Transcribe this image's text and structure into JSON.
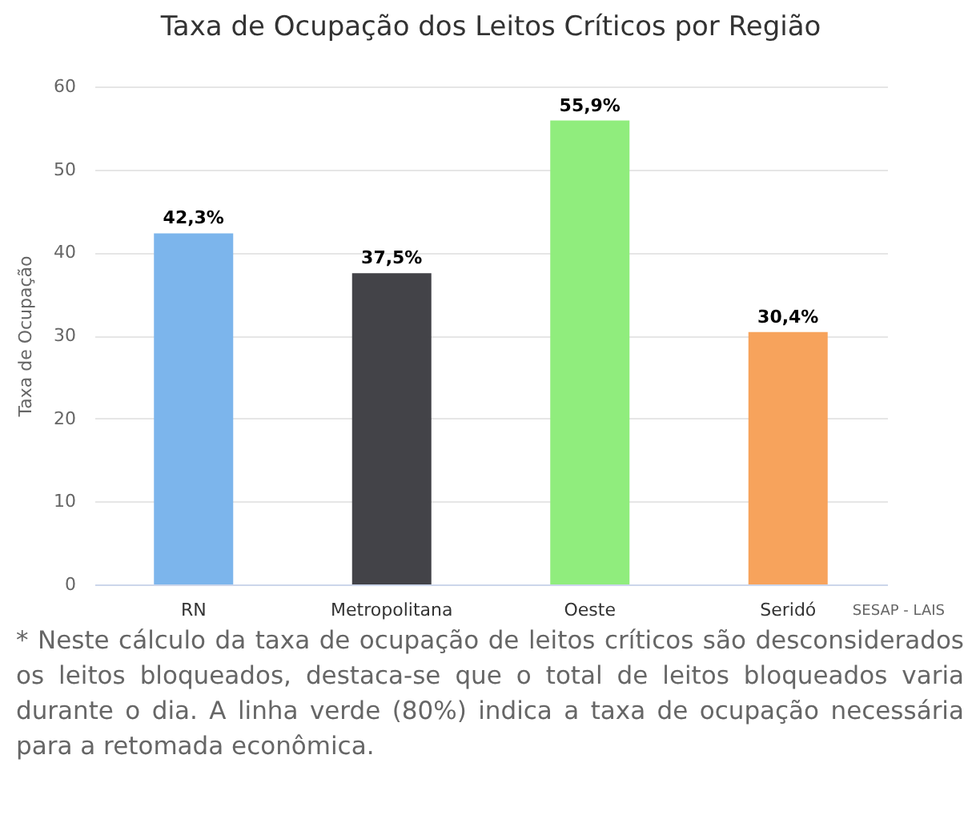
{
  "chart_data": {
    "type": "bar",
    "title": "Taxa de Ocupação dos Leitos Críticos por Região",
    "ylabel": "Taxa de Ocupação",
    "categories": [
      "RN",
      "Metropolitana",
      "Oeste",
      "Seridó"
    ],
    "values": [
      42.3,
      37.5,
      55.9,
      30.4
    ],
    "colors": [
      "#7cb5ec",
      "#434348",
      "#90ed7d",
      "#f7a35c"
    ],
    "value_labels": [
      "42,3%",
      "37,5%",
      "55,9%",
      "30,4%"
    ],
    "ylim": [
      0,
      60
    ],
    "yticks": [
      0,
      10,
      20,
      30,
      40,
      50,
      60
    ],
    "grid": "y",
    "annotations": [
      "SESAP - LAIS",
      "* Neste cálculo da taxa de ocupação de leitos críticos são desconsiderados os leitos bloqueados, destaca-se que o total de leitos bloqueados varia durante o dia. A linha verde (80%) indica a taxa de ocupação necessária para a retomada econômica."
    ]
  }
}
